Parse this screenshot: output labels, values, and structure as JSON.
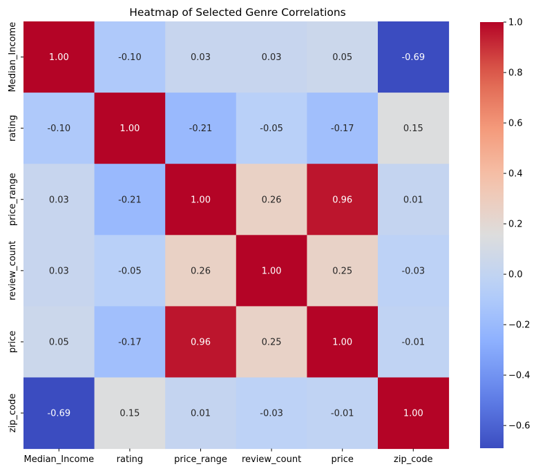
{
  "chart_data": {
    "type": "heatmap",
    "title": "Heatmap of Selected Genre Correlations",
    "xlabel": "",
    "ylabel": "",
    "x_categories": [
      "Median_Income",
      "rating",
      "price_range",
      "review_count",
      "price",
      "zip_code"
    ],
    "y_categories": [
      "Median_Income",
      "rating",
      "price_range",
      "review_count",
      "price",
      "zip_code"
    ],
    "values": [
      [
        1.0,
        -0.1,
        0.03,
        0.03,
        0.05,
        -0.69
      ],
      [
        -0.1,
        1.0,
        -0.21,
        -0.05,
        -0.17,
        0.15
      ],
      [
        0.03,
        -0.21,
        1.0,
        0.26,
        0.96,
        0.01
      ],
      [
        0.03,
        -0.05,
        0.26,
        1.0,
        0.25,
        -0.03
      ],
      [
        0.05,
        -0.17,
        0.96,
        0.25,
        1.0,
        -0.01
      ],
      [
        -0.69,
        0.15,
        0.01,
        -0.03,
        -0.01,
        1.0
      ]
    ],
    "value_format": "2 decimals",
    "colormap": "coolwarm",
    "color_range": [
      -0.69,
      1.0
    ],
    "colorbar_ticks": [
      1.0,
      0.8,
      0.6,
      0.4,
      0.2,
      0.0,
      -0.2,
      -0.4,
      -0.6
    ],
    "colorbar_tick_labels": [
      "1.0",
      "0.8",
      "0.6",
      "0.4",
      "0.2",
      "0.0",
      "−0.2",
      "−0.4",
      "−0.6"
    ],
    "legend": "colorbar-right",
    "grid": false
  }
}
